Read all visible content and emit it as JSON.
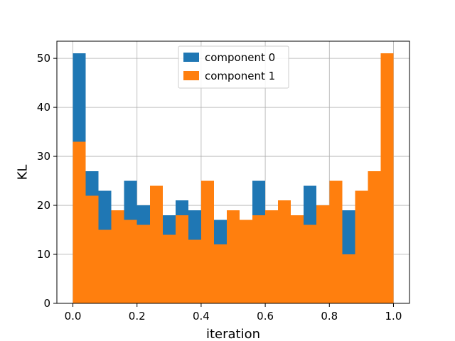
{
  "chart_data": {
    "type": "bar",
    "histogram": true,
    "bin_edges": [
      0.0,
      0.04,
      0.08,
      0.12,
      0.16,
      0.2,
      0.24,
      0.28,
      0.32,
      0.36,
      0.4,
      0.44,
      0.48,
      0.52,
      0.56,
      0.6,
      0.64,
      0.68,
      0.72,
      0.76,
      0.8,
      0.84,
      0.88,
      0.92,
      0.96,
      1.0
    ],
    "series": [
      {
        "name": "component 0",
        "color": "#1f77b4",
        "values": [
          51,
          27,
          23,
          19,
          25,
          20,
          24,
          18,
          21,
          19,
          25,
          17,
          19,
          17,
          25,
          19,
          21,
          18,
          24,
          20,
          25,
          19,
          23,
          27,
          51
        ]
      },
      {
        "name": "component 1",
        "color": "#ff7f0e",
        "values": [
          33,
          22,
          15,
          19,
          17,
          16,
          24,
          14,
          18,
          13,
          25,
          12,
          19,
          17,
          18,
          19,
          21,
          18,
          16,
          20,
          25,
          10,
          23,
          27,
          51
        ]
      }
    ],
    "xlabel": "iteration",
    "ylabel": "KL",
    "xlim": [
      -0.05,
      1.05
    ],
    "ylim": [
      0,
      53.5
    ],
    "xticks": [
      {
        "value": 0.0,
        "label": "0.0"
      },
      {
        "value": 0.2,
        "label": "0.2"
      },
      {
        "value": 0.4,
        "label": "0.4"
      },
      {
        "value": 0.6,
        "label": "0.6"
      },
      {
        "value": 0.8,
        "label": "0.8"
      },
      {
        "value": 1.0,
        "label": "1.0"
      }
    ],
    "yticks": [
      {
        "value": 0,
        "label": "0"
      },
      {
        "value": 10,
        "label": "10"
      },
      {
        "value": 20,
        "label": "20"
      },
      {
        "value": 30,
        "label": "30"
      },
      {
        "value": 40,
        "label": "40"
      },
      {
        "value": 50,
        "label": "50"
      }
    ],
    "grid": true,
    "legend": "top-center"
  }
}
